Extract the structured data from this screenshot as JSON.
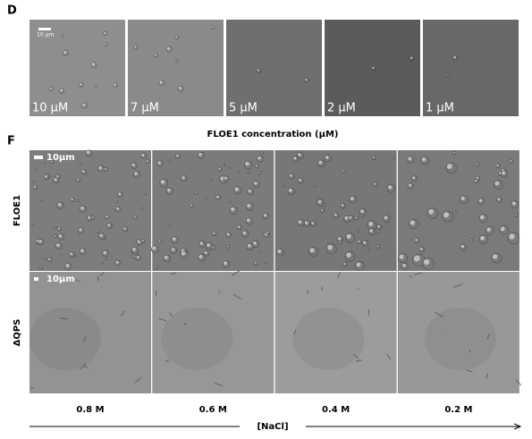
{
  "panel_d": {
    "label": "D",
    "scale_bar": "10 μm",
    "images": [
      {
        "label": "10 μM"
      },
      {
        "label": "7 μM"
      },
      {
        "label": "5 μM"
      },
      {
        "label": "2 μM"
      },
      {
        "label": "1 μM"
      }
    ],
    "caption": "FLOE1 concentration (μM)"
  },
  "panel_f": {
    "label": "F",
    "rows": [
      {
        "label": "FLOE1",
        "scale_bar": "10μm"
      },
      {
        "label": "ΔQPS",
        "scale_bar": "10μm"
      }
    ],
    "columns": [
      "0.8 M",
      "0.6 M",
      "0.4 M",
      "0.2 M"
    ],
    "axis_label": "[NaCl]"
  }
}
